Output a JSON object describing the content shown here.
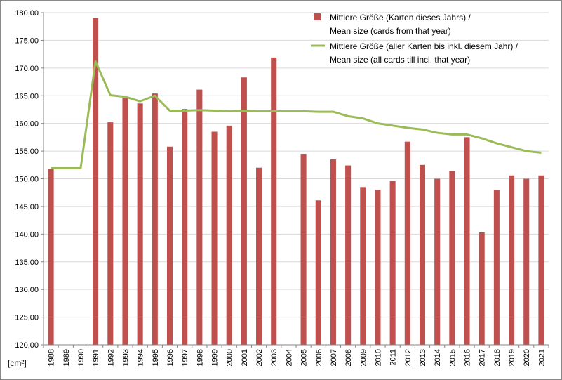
{
  "chart_data": {
    "type": "bar",
    "categories": [
      "1988",
      "1989",
      "1990",
      "1991",
      "1992",
      "1993",
      "1994",
      "1995",
      "1996",
      "1997",
      "1998",
      "1999",
      "2000",
      "2001",
      "2002",
      "2003",
      "2004",
      "2005",
      "2006",
      "2007",
      "2008",
      "2009",
      "2010",
      "2011",
      "2012",
      "2013",
      "2014",
      "2015",
      "2016",
      "2017",
      "2018",
      "2019",
      "2020",
      "2021"
    ],
    "series": [
      {
        "name": "Mittlere Größe (Karten dieses Jahrs) / Mean size (cards from that year)",
        "legend_lines": [
          "Mittlere Größe (Karten dieses Jahrs) /",
          "Mean size (cards from that year)"
        ],
        "type": "bar",
        "color": "#c0504d",
        "values": [
          151.8,
          null,
          null,
          179.0,
          160.2,
          164.8,
          163.6,
          165.4,
          155.8,
          162.6,
          166.1,
          158.5,
          159.6,
          168.3,
          152.0,
          171.9,
          null,
          154.5,
          146.1,
          153.5,
          152.4,
          148.5,
          148.0,
          149.6,
          156.7,
          152.5,
          150.0,
          151.4,
          157.5,
          140.3,
          148.0,
          150.6,
          150.0,
          150.6
        ]
      },
      {
        "name": "Mittlere Größe (aller Karten bis inkl. diesem Jahr) / Mean size (all cards till incl. that year)",
        "legend_lines": [
          "Mittlere Größe (aller Karten bis inkl. diesem Jahr) /",
          "Mean size (all cards till incl. that year)"
        ],
        "type": "line",
        "color": "#9bbb59",
        "values": [
          151.9,
          151.9,
          151.9,
          171.2,
          165.1,
          164.8,
          164.0,
          165.0,
          162.3,
          162.3,
          162.4,
          162.3,
          162.2,
          162.3,
          162.2,
          162.2,
          162.2,
          162.2,
          162.1,
          162.1,
          161.3,
          160.9,
          160.0,
          159.6,
          159.2,
          158.9,
          158.3,
          158.0,
          158.0,
          157.3,
          156.4,
          155.7,
          155.0,
          154.7
        ]
      }
    ],
    "y_tick_labels": [
      "120,00",
      "125,00",
      "130,00",
      "135,00",
      "140,00",
      "145,00",
      "150,00",
      "155,00",
      "160,00",
      "165,00",
      "170,00",
      "175,00",
      "180,00"
    ],
    "ylabel": "[cm²]",
    "xlabel": "",
    "ylim": [
      120,
      180
    ],
    "ytick_step": 5,
    "grid": true,
    "legend_position": "top-right",
    "grid_color": "#d9d9d9",
    "axis_color": "#868686"
  }
}
